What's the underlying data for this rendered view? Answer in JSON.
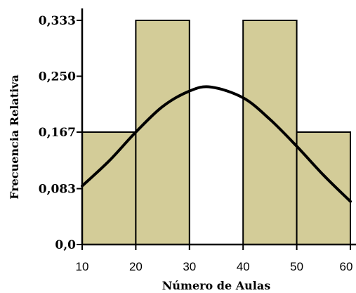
{
  "chart_data": {
    "type": "bar",
    "subtype": "histogram-with-normal-curve",
    "xlabel": "Número de Aulas",
    "ylabel": "Frecuencia Relativa",
    "xlim": [
      10,
      60
    ],
    "ylim": [
      0,
      0.333
    ],
    "x_ticks": [
      10,
      20,
      30,
      40,
      50,
      60
    ],
    "x_tick_labels": [
      "10",
      "20",
      "30",
      "40",
      "50",
      "60"
    ],
    "y_ticks": [
      0,
      0.083,
      0.167,
      0.25,
      0.333
    ],
    "y_tick_labels": [
      "0,0",
      "0,083",
      "0,167",
      "0,250",
      "0,333"
    ],
    "bins": [
      {
        "start": 10,
        "end": 20,
        "value": 0.167
      },
      {
        "start": 20,
        "end": 30,
        "value": 0.333
      },
      {
        "start": 30,
        "end": 40,
        "value": 0.0
      },
      {
        "start": 40,
        "end": 50,
        "value": 0.333
      },
      {
        "start": 50,
        "end": 60,
        "value": 0.167
      }
    ],
    "normal_curve": {
      "x": [
        10,
        15,
        20,
        25,
        30,
        34,
        40,
        45,
        50,
        55,
        60
      ],
      "y": [
        0.087,
        0.124,
        0.167,
        0.205,
        0.228,
        0.234,
        0.218,
        0.186,
        0.146,
        0.103,
        0.064
      ]
    },
    "colors": {
      "bar_fill": "#D3CC98",
      "bar_stroke": "#000000",
      "curve": "#000000",
      "background": "#FFFFFF"
    },
    "grid": false,
    "legend": "none"
  }
}
